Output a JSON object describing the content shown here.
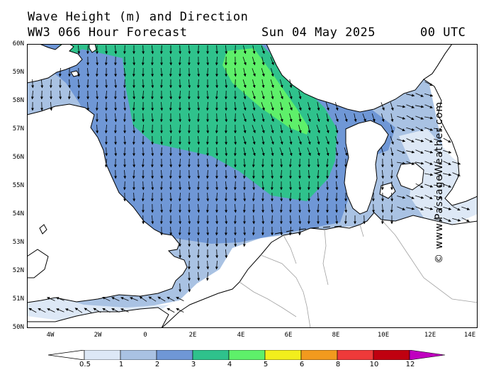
{
  "header": {
    "line1": "Wave Height (m) and Direction",
    "line2_left": "WW3 066 Hour Forecast",
    "line2_date": "Sun 04 May 2025",
    "line2_time": "00 UTC"
  },
  "credit": "© www.PassageWeather.com",
  "lat_labels": [
    "60N",
    "59N",
    "58N",
    "57N",
    "56N",
    "55N",
    "54N",
    "53N",
    "52N",
    "51N",
    "50N"
  ],
  "lon_labels": [
    "4W",
    "2W",
    "0",
    "2E",
    "4E",
    "6E",
    "8E",
    "10E",
    "12E",
    "14E"
  ],
  "legend": {
    "labels": [
      "0.5",
      "1",
      "2",
      "3",
      "4",
      "5",
      "6",
      "8",
      "10",
      "12"
    ],
    "colors": [
      "#dde8f6",
      "#a9c2e3",
      "#6f97d6",
      "#2fc28c",
      "#5ef06a",
      "#f2ee1c",
      "#f29a1e",
      "#ee3a3a",
      "#c00010",
      "#c000c0"
    ]
  },
  "map_colors": {
    "land": "#ffffff",
    "sea_lt05": "#ffffff",
    "sea_05_1": "#dde8f6",
    "sea_1_2": "#a9c2e3",
    "sea_2_3": "#6f97d6",
    "sea_3_4": "#2fc28c",
    "sea_4_5": "#5ef06a",
    "coast": "#000000",
    "border": "#a0a0a0",
    "arrow": "#000000"
  }
}
